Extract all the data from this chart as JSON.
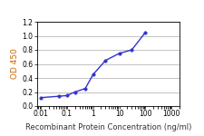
{
  "x_values": [
    0.01,
    0.05,
    0.1,
    0.2,
    0.5,
    1,
    3,
    10,
    30,
    100
  ],
  "y_values": [
    0.12,
    0.14,
    0.15,
    0.2,
    0.25,
    0.45,
    0.65,
    0.75,
    0.8,
    1.05
  ],
  "line_color": "#3333cc",
  "marker_color": "#3333cc",
  "marker_style": "o",
  "marker_size": 2.5,
  "line_width": 1.0,
  "xlabel": "Recombinant Protein Concentration (ng/ml)",
  "ylabel": "OD 450",
  "xlim": [
    0.007,
    2000
  ],
  "ylim": [
    0.0,
    1.2
  ],
  "yticks": [
    0.0,
    0.2,
    0.4,
    0.6,
    0.8,
    1.0,
    1.2
  ],
  "xticks": [
    0.01,
    0.1,
    1,
    10,
    100,
    1000
  ],
  "xtick_labels": [
    "0.01",
    "0.1",
    "1",
    "10",
    "100",
    "1000"
  ],
  "xlabel_fontsize": 6.0,
  "ylabel_fontsize": 6.5,
  "tick_fontsize": 5.5,
  "xlabel_color": "#333333",
  "ylabel_color": "#cc6600",
  "background_color": "#ffffff",
  "plot_bg_color": "#ffffff",
  "grid_color": "#aaaaaa",
  "grid_linewidth": 0.5
}
